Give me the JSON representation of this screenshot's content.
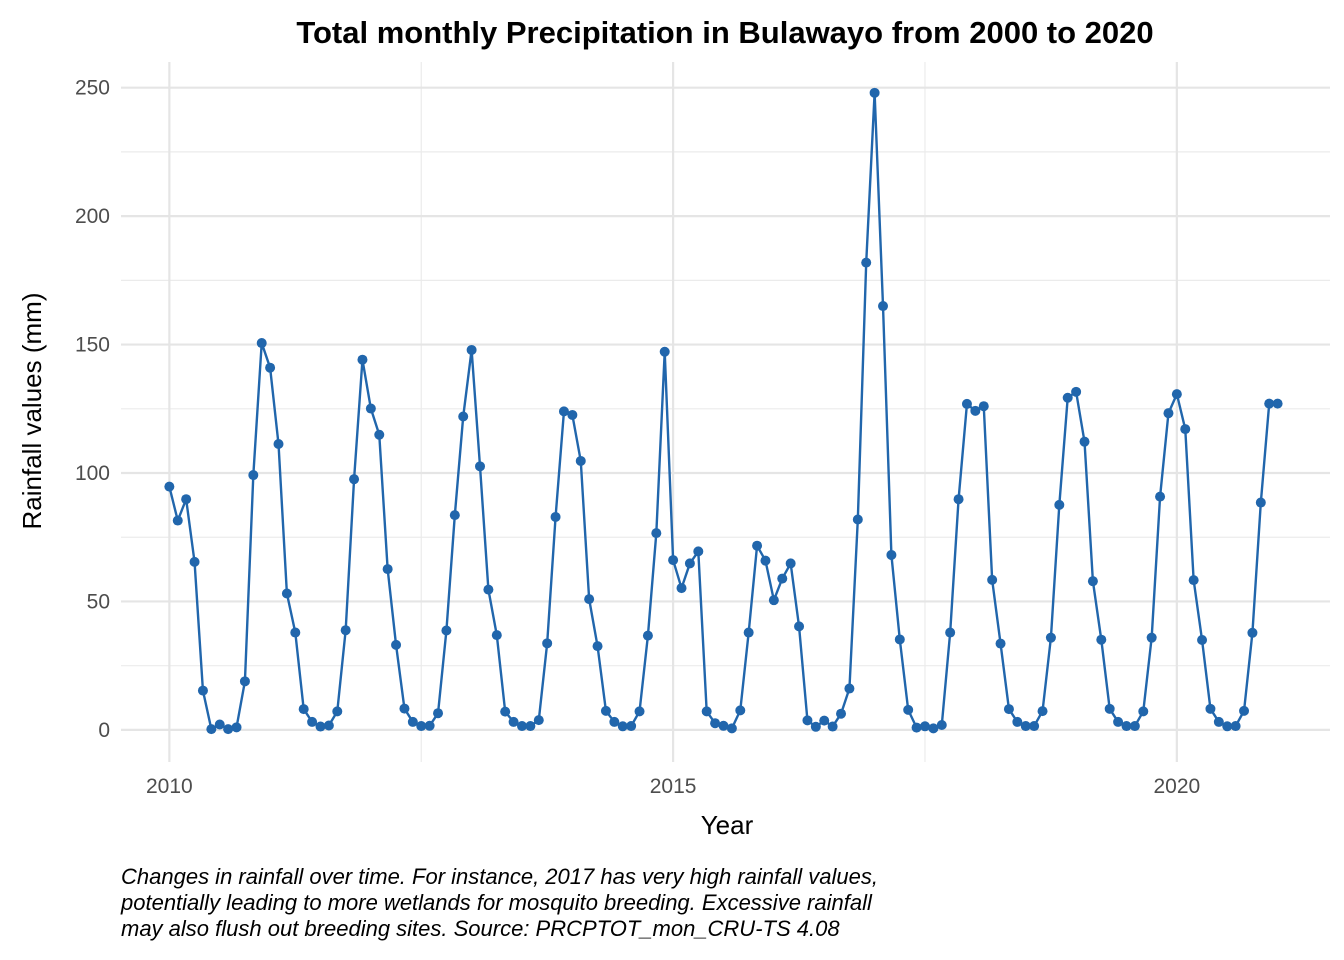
{
  "chart_data": {
    "type": "line",
    "title": "Total monthly Precipitation in Bulawayo from 2000 to 2020",
    "xlabel": "Year",
    "ylabel": "Rainfall values (mm)",
    "x_ticks": [
      2010,
      2015,
      2020
    ],
    "y_ticks": [
      0,
      50,
      100,
      150,
      200,
      250
    ],
    "xlim": [
      2009.52,
      2021.52
    ],
    "ylim": [
      -12.5,
      260
    ],
    "grid": true,
    "legend": "none",
    "series": [
      {
        "color": "#2166ac",
        "x": [
          "2010-01",
          "2010-02",
          "2010-03",
          "2010-04",
          "2010-05",
          "2010-06",
          "2010-07",
          "2010-08",
          "2010-09",
          "2010-10",
          "2010-11",
          "2010-12",
          "2011-01",
          "2011-02",
          "2011-03",
          "2011-04",
          "2011-05",
          "2011-06",
          "2011-07",
          "2011-08",
          "2011-09",
          "2011-10",
          "2011-11",
          "2011-12",
          "2012-01",
          "2012-02",
          "2012-03",
          "2012-04",
          "2012-05",
          "2012-06",
          "2012-07",
          "2012-08",
          "2012-09",
          "2012-10",
          "2012-11",
          "2012-12",
          "2013-01",
          "2013-02",
          "2013-03",
          "2013-04",
          "2013-05",
          "2013-06",
          "2013-07",
          "2013-08",
          "2013-09",
          "2013-10",
          "2013-11",
          "2013-12",
          "2014-01",
          "2014-02",
          "2014-03",
          "2014-04",
          "2014-05",
          "2014-06",
          "2014-07",
          "2014-08",
          "2014-09",
          "2014-10",
          "2014-11",
          "2014-12",
          "2015-01",
          "2015-02",
          "2015-03",
          "2015-04",
          "2015-05",
          "2015-06",
          "2015-07",
          "2015-08",
          "2015-09",
          "2015-10",
          "2015-11",
          "2015-12",
          "2016-01",
          "2016-02",
          "2016-03",
          "2016-04",
          "2016-05",
          "2016-06",
          "2016-07",
          "2016-08",
          "2016-09",
          "2016-10",
          "2016-11",
          "2016-12",
          "2017-01",
          "2017-02",
          "2017-03",
          "2017-04",
          "2017-05",
          "2017-06",
          "2017-07",
          "2017-08",
          "2017-09",
          "2017-10",
          "2017-11",
          "2017-12",
          "2018-01",
          "2018-02",
          "2018-03",
          "2018-04",
          "2018-05",
          "2018-06",
          "2018-07",
          "2018-08",
          "2018-09",
          "2018-10",
          "2018-11",
          "2018-12",
          "2019-01",
          "2019-02",
          "2019-03",
          "2019-04",
          "2019-05",
          "2019-06",
          "2019-07",
          "2019-08",
          "2019-09",
          "2019-10",
          "2019-11",
          "2019-12",
          "2020-01",
          "2020-02",
          "2020-03",
          "2020-04",
          "2020-05",
          "2020-06",
          "2020-07",
          "2020-08",
          "2020-09",
          "2020-10",
          "2020-11",
          "2020-12",
          "2021-01"
        ],
        "y": [
          94.7,
          81.5,
          89.8,
          65.4,
          15.3,
          0.3,
          2.1,
          0.3,
          1.0,
          18.9,
          99.2,
          150.6,
          141.0,
          111.3,
          53.1,
          37.9,
          8.1,
          3.1,
          1.3,
          1.7,
          7.2,
          38.8,
          97.6,
          144.1,
          125.1,
          114.9,
          62.6,
          33.1,
          8.3,
          3.1,
          1.5,
          1.6,
          6.5,
          38.7,
          83.6,
          122.0,
          147.9,
          102.6,
          54.6,
          36.9,
          7.1,
          3.1,
          1.5,
          1.5,
          3.8,
          33.7,
          82.9,
          124.0,
          122.6,
          104.7,
          50.9,
          32.6,
          7.4,
          3.1,
          1.4,
          1.5,
          7.2,
          36.7,
          76.6,
          147.2,
          66.1,
          55.2,
          64.8,
          69.5,
          7.2,
          2.6,
          1.6,
          0.6,
          7.6,
          37.9,
          71.7,
          65.9,
          50.5,
          58.9,
          64.8,
          40.3,
          3.7,
          1.2,
          3.6,
          1.3,
          6.3,
          16.1,
          81.9,
          181.9,
          248.0,
          165.0,
          68.1,
          35.2,
          7.8,
          0.9,
          1.4,
          0.6,
          1.9,
          37.9,
          89.8,
          126.9,
          124.2,
          126.0,
          58.4,
          33.6,
          8.1,
          3.1,
          1.5,
          1.5,
          7.3,
          35.9,
          87.6,
          129.3,
          131.6,
          112.2,
          57.9,
          35.1,
          8.2,
          3.1,
          1.5,
          1.5,
          7.2,
          35.9,
          90.8,
          123.3,
          130.7,
          117.1,
          58.3,
          35.0,
          8.2,
          3.1,
          1.4,
          1.5,
          7.4,
          37.8,
          88.5,
          127.0,
          127.0
        ]
      }
    ]
  },
  "caption_lines": [
    "Changes in rainfall over time. For instance, 2017 has very high rainfall values,",
    "potentially leading to more wetlands for mosquito breeding. Excessive rainfall",
    "may also flush out breeding sites. Source: PRCPTOT_mon_CRU-TS 4.08"
  ]
}
